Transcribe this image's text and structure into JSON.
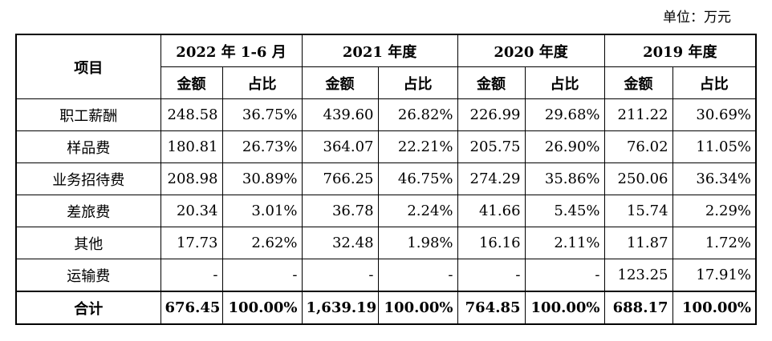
{
  "unit_label": "单位：万元",
  "header": {
    "item_label": "项目",
    "periods": [
      {
        "label": "2022 年 1-6 月"
      },
      {
        "label": "2021 年度"
      },
      {
        "label": "2020 年度"
      },
      {
        "label": "2019 年度"
      }
    ],
    "amount_label": "金额",
    "ratio_label": "占比"
  },
  "rows": [
    {
      "name": "职工薪酬",
      "values": [
        "248.58",
        "36.75%",
        "439.60",
        "26.82%",
        "226.99",
        "29.68%",
        "211.22",
        "30.69%"
      ]
    },
    {
      "name": "样品费",
      "values": [
        "180.81",
        "26.73%",
        "364.07",
        "22.21%",
        "205.75",
        "26.90%",
        "76.02",
        "11.05%"
      ]
    },
    {
      "name": "业务招待费",
      "values": [
        "208.98",
        "30.89%",
        "766.25",
        "46.75%",
        "274.29",
        "35.86%",
        "250.06",
        "36.34%"
      ]
    },
    {
      "name": "差旅费",
      "values": [
        "20.34",
        "3.01%",
        "36.78",
        "2.24%",
        "41.66",
        "5.45%",
        "15.74",
        "2.29%"
      ]
    },
    {
      "name": "其他",
      "values": [
        "17.73",
        "2.62%",
        "32.48",
        "1.98%",
        "16.16",
        "2.11%",
        "11.87",
        "1.72%"
      ]
    },
    {
      "name": "运输费",
      "values": [
        "-",
        "-",
        "-",
        "-",
        "-",
        "-",
        "123.25",
        "17.91%"
      ]
    }
  ],
  "total": {
    "name": "合计",
    "values": [
      "676.45",
      "100.00%",
      "1,639.19",
      "100.00%",
      "764.85",
      "100.00%",
      "688.17",
      "100.00%"
    ]
  }
}
